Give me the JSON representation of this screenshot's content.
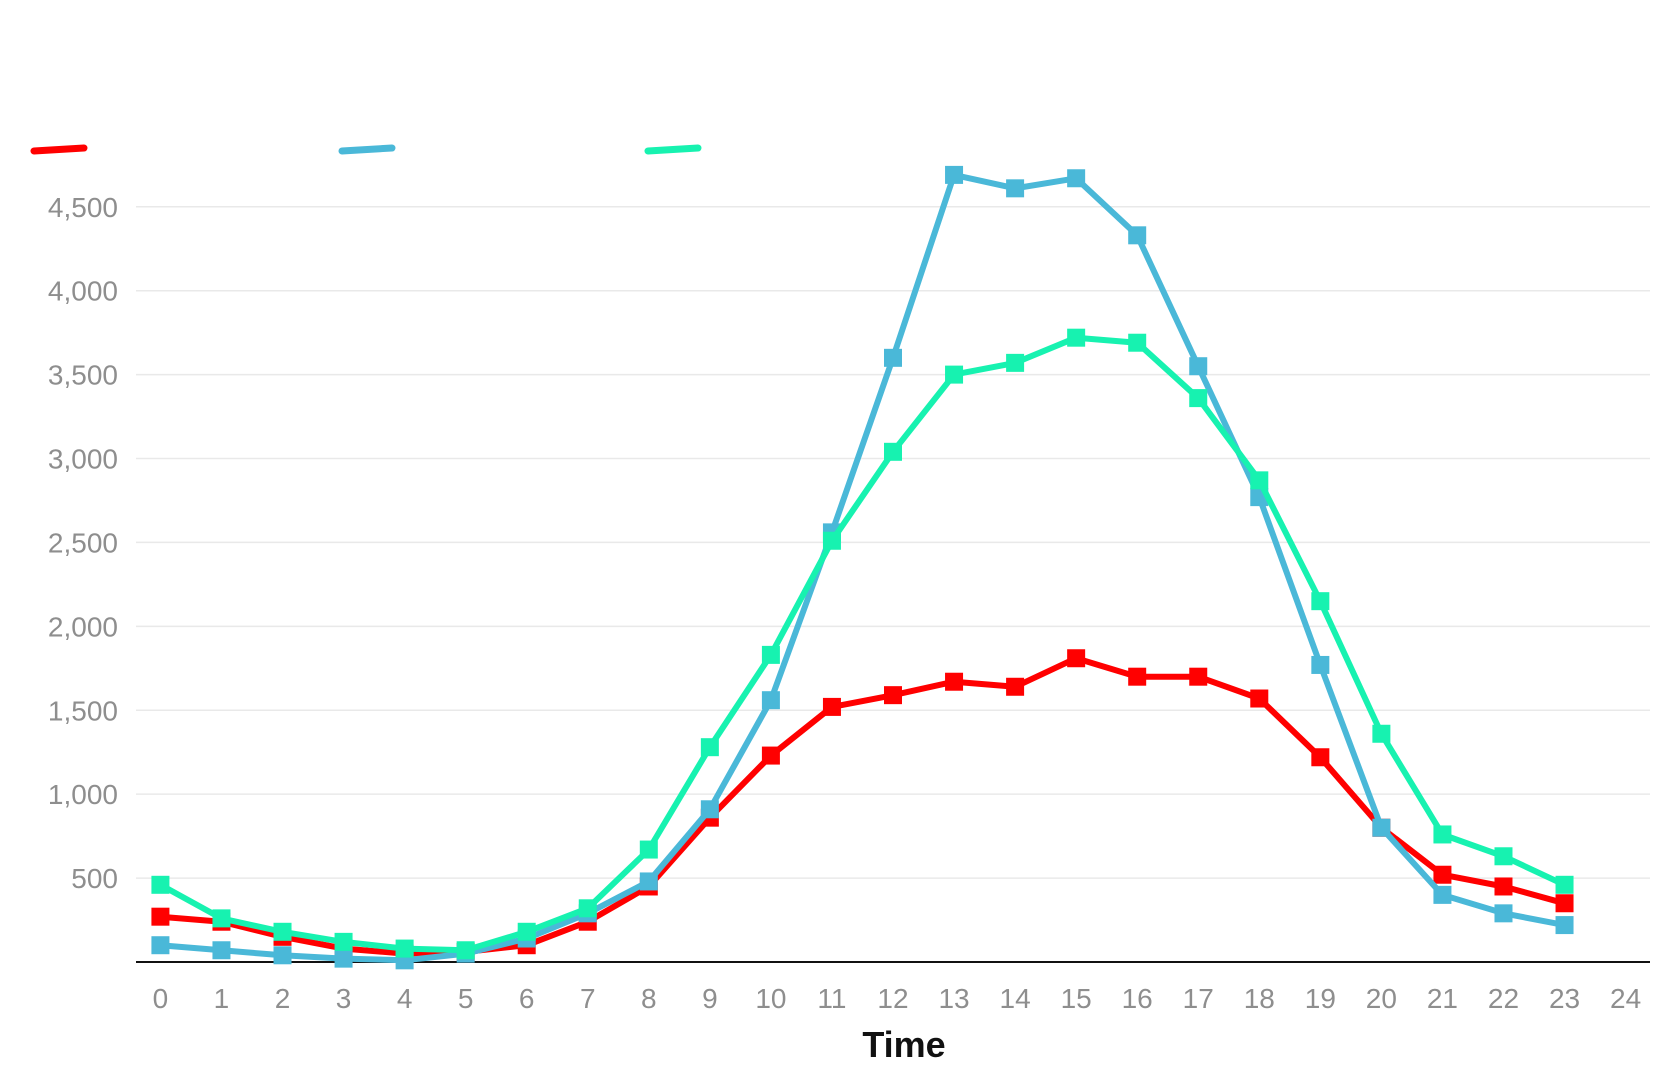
{
  "chart_data": {
    "type": "line",
    "title": "",
    "xlabel": "Time",
    "ylabel": "",
    "x": [
      0,
      1,
      2,
      3,
      4,
      5,
      6,
      7,
      8,
      9,
      10,
      11,
      12,
      13,
      14,
      15,
      16,
      17,
      18,
      19,
      20,
      21,
      22,
      23
    ],
    "x_ticks": [
      0,
      1,
      2,
      3,
      4,
      5,
      6,
      7,
      8,
      9,
      10,
      11,
      12,
      13,
      14,
      15,
      16,
      17,
      18,
      19,
      20,
      21,
      22,
      23,
      24
    ],
    "xlim": [
      -0.4,
      24.4
    ],
    "y_ticks": [
      500,
      1000,
      1500,
      2000,
      2500,
      3000,
      3500,
      4000,
      4500
    ],
    "y_tick_labels": [
      "500",
      "1,000",
      "1,500",
      "2,000",
      "2,500",
      "3,000",
      "3,500",
      "4,000",
      "4,500"
    ],
    "ylim": [
      0,
      4600
    ],
    "grid": true,
    "legend": "top-left",
    "marker": "square",
    "series": [
      {
        "color": "#ff0000",
        "values": [
          270,
          240,
          150,
          80,
          50,
          60,
          100,
          240,
          450,
          860,
          1230,
          1520,
          1590,
          1670,
          1640,
          1810,
          1700,
          1700,
          1570,
          1220,
          800,
          520,
          450,
          350
        ]
      },
      {
        "color": "#4ab8d8",
        "values": [
          100,
          70,
          40,
          20,
          10,
          50,
          140,
          290,
          480,
          910,
          1560,
          2560,
          3600,
          4690,
          4610,
          4670,
          4330,
          3550,
          2770,
          1770,
          800,
          400,
          290,
          220
        ]
      },
      {
        "color": "#17f2b0",
        "values": [
          460,
          260,
          180,
          120,
          80,
          70,
          180,
          320,
          670,
          1280,
          1830,
          2510,
          3040,
          3500,
          3570,
          3720,
          3690,
          3360,
          2870,
          2150,
          1360,
          760,
          630,
          460
        ]
      }
    ]
  }
}
